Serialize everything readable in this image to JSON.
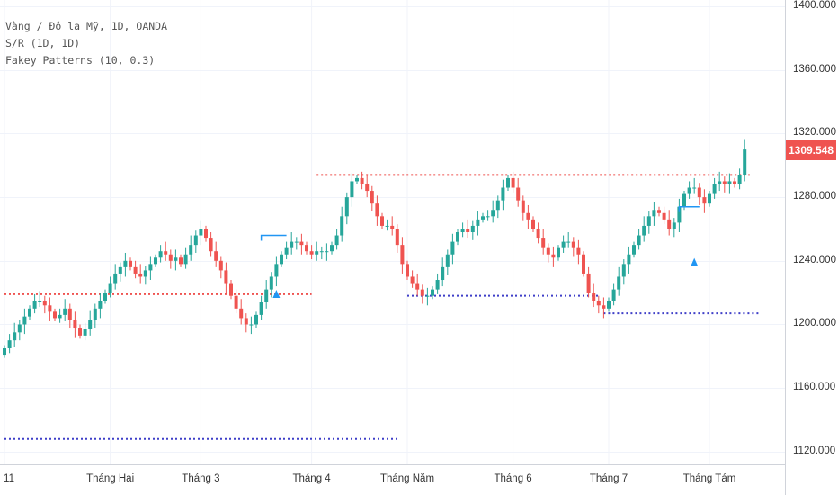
{
  "legend": {
    "symbol": "Vàng / Đô la Mỹ, 1D, OANDA",
    "sr": "S/R (1D, 1D)",
    "fakey": "Fakey Patterns (10, 0.3)"
  },
  "last_price": "1309.548",
  "colors": {
    "up": "#26a69a",
    "down": "#ef5350",
    "support": "#3f3fc8",
    "resistance": "#ef5350",
    "fakey": "#2196f3"
  },
  "chart_data": {
    "type": "candlestick",
    "y_ticks": [
      "1400.000",
      "1360.000",
      "1320.000",
      "1280.000",
      "1240.000",
      "1200.000",
      "1160.000",
      "1120.000"
    ],
    "y_tick_values": [
      1400,
      1360,
      1320,
      1280,
      1240,
      1200,
      1160,
      1120
    ],
    "ylim": [
      1112,
      1404
    ],
    "x_ticks": [
      "11",
      "Tháng Hai",
      "Tháng 3",
      "Tháng 4",
      "Tháng Năm",
      "Tháng 6",
      "Tháng 7",
      "Tháng Tám"
    ],
    "x_tick_index": [
      0,
      21,
      39,
      61,
      80,
      101,
      120,
      140
    ],
    "close_series": [
      1185,
      1190,
      1195,
      1200,
      1205,
      1210,
      1215,
      1215,
      1212,
      1208,
      1204,
      1206,
      1210,
      1203,
      1198,
      1193,
      1197,
      1203,
      1210,
      1215,
      1220,
      1226,
      1232,
      1236,
      1240,
      1236,
      1232,
      1230,
      1234,
      1238,
      1242,
      1246,
      1244,
      1240,
      1242,
      1238,
      1244,
      1250,
      1256,
      1260,
      1254,
      1246,
      1240,
      1234,
      1226,
      1218,
      1210,
      1204,
      1200,
      1200,
      1206,
      1214,
      1222,
      1230,
      1238,
      1244,
      1248,
      1252,
      1252,
      1250,
      1246,
      1244,
      1246,
      1246,
      1246,
      1250,
      1256,
      1268,
      1280,
      1290,
      1292,
      1288,
      1284,
      1276,
      1268,
      1262,
      1262,
      1260,
      1250,
      1238,
      1230,
      1226,
      1222,
      1218,
      1218,
      1222,
      1228,
      1236,
      1244,
      1252,
      1258,
      1260,
      1258,
      1262,
      1266,
      1268,
      1268,
      1272,
      1278,
      1286,
      1292,
      1286,
      1278,
      1270,
      1266,
      1260,
      1254,
      1248,
      1244,
      1242,
      1248,
      1252,
      1252,
      1248,
      1244,
      1232,
      1220,
      1215,
      1212,
      1210,
      1215,
      1222,
      1230,
      1238,
      1244,
      1250,
      1256,
      1262,
      1268,
      1272,
      1270,
      1266,
      1260,
      1264,
      1274,
      1282,
      1286,
      1286,
      1280,
      1276,
      1282,
      1288,
      1290,
      1288,
      1290,
      1288,
      1294,
      1310
    ],
    "resistance": [
      {
        "price": 1219,
        "from": 0,
        "to": 61
      },
      {
        "price": 1294,
        "from": 62,
        "to": 148
      }
    ],
    "support": [
      {
        "price": 1218,
        "from": 80,
        "to": 118
      },
      {
        "price": 1128,
        "from": 0,
        "to": 78
      },
      {
        "price": 1207,
        "from": 119,
        "to": 150
      }
    ],
    "fakey_signals": [
      {
        "index": 54,
        "price": 1232
      },
      {
        "index": 137,
        "price": 1252
      }
    ],
    "fakey_brackets": [
      {
        "from": 51,
        "to": 56,
        "price": 1256
      },
      {
        "from": 134,
        "to": 138,
        "price": 1274
      }
    ],
    "last_close": 1309.548
  }
}
